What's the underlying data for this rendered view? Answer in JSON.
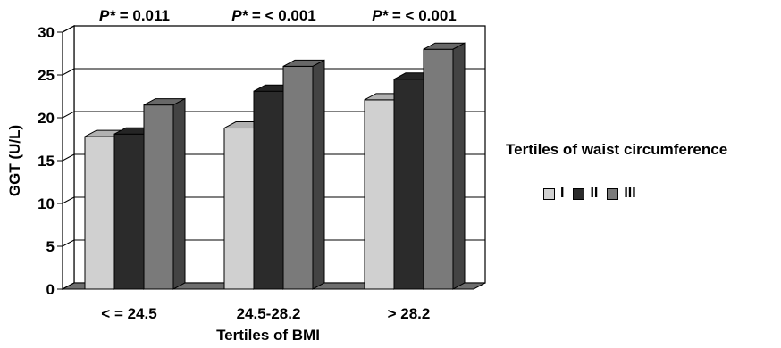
{
  "chart_data": {
    "type": "bar",
    "xlabel": "Tertiles of BMI",
    "ylabel": "GGT (U/L)",
    "ylim": [
      0,
      30
    ],
    "yticks": [
      "0",
      "5",
      "10",
      "15",
      "20",
      "25",
      "30"
    ],
    "categories": [
      "< = 24.5",
      "24.5-28.2",
      "> 28.2"
    ],
    "series": [
      {
        "name": "I",
        "color": "#d0d0d0",
        "values": [
          17.8,
          18.8,
          22.1
        ]
      },
      {
        "name": "II",
        "color": "#2b2b2b",
        "values": [
          18.1,
          23.1,
          24.5
        ]
      },
      {
        "name": "III",
        "color": "#7a7a7a",
        "values": [
          21.5,
          26.0,
          28.0
        ]
      }
    ],
    "annotations": [
      {
        "prefix": "P*",
        "text": " = 0.011"
      },
      {
        "prefix": "P*",
        "text": " = < 0.001"
      },
      {
        "prefix": "P*",
        "text": " = < 0.001"
      }
    ],
    "legend": {
      "title": "Tertiles of waist circumference",
      "position": "right"
    },
    "grid": true,
    "style": "3d"
  }
}
